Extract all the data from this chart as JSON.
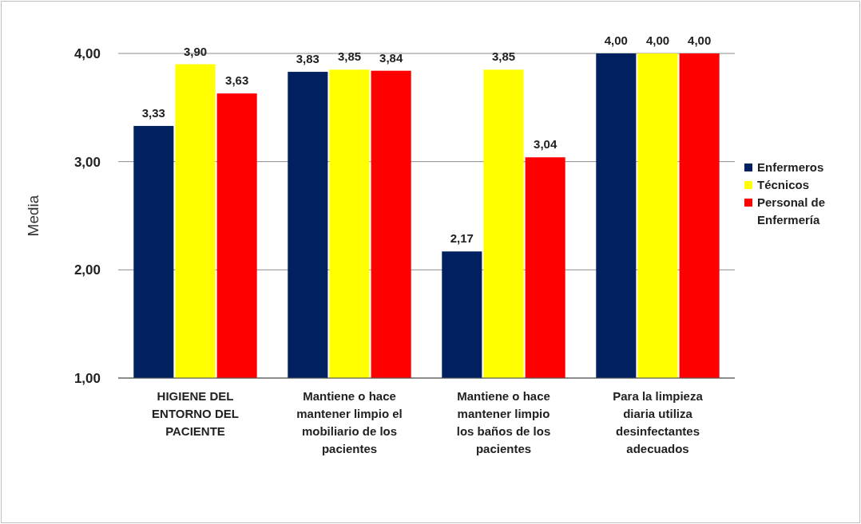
{
  "chart_data": {
    "type": "bar",
    "ylabel": "Media",
    "categories": [
      "HIGIENE DEL ENTORNO DEL PACIENTE",
      "Mantiene o hace mantener limpio el mobiliario de los pacientes",
      "Mantiene o hace mantener limpio los baños de los pacientes",
      "Para la limpieza diaria utiliza desinfectantes adecuados"
    ],
    "series": [
      {
        "name": "Enfermeros",
        "color": "#002060",
        "values": [
          3.33,
          3.83,
          2.17,
          4.0
        ],
        "value_labels": [
          "3,33",
          "3,83",
          "2,17",
          "4,00"
        ]
      },
      {
        "name": "Técnicos",
        "color": "#ffff00",
        "values": [
          3.9,
          3.85,
          3.85,
          4.0
        ],
        "value_labels": [
          "3,90",
          "3,85",
          "3,85",
          "4,00"
        ]
      },
      {
        "name": "Personal de Enfermería",
        "color": "#ff0000",
        "values": [
          3.63,
          3.84,
          3.04,
          4.0
        ],
        "value_labels": [
          "3,63",
          "3,84",
          "3,04",
          "4,00"
        ]
      }
    ],
    "ylim": [
      1,
      4
    ],
    "yticks": [
      {
        "value": 1,
        "label": "1,00"
      },
      {
        "value": 2,
        "label": "2,00"
      },
      {
        "value": 3,
        "label": "3,00"
      },
      {
        "value": 4,
        "label": "4,00"
      }
    ],
    "grid": "y",
    "legend": "right"
  }
}
